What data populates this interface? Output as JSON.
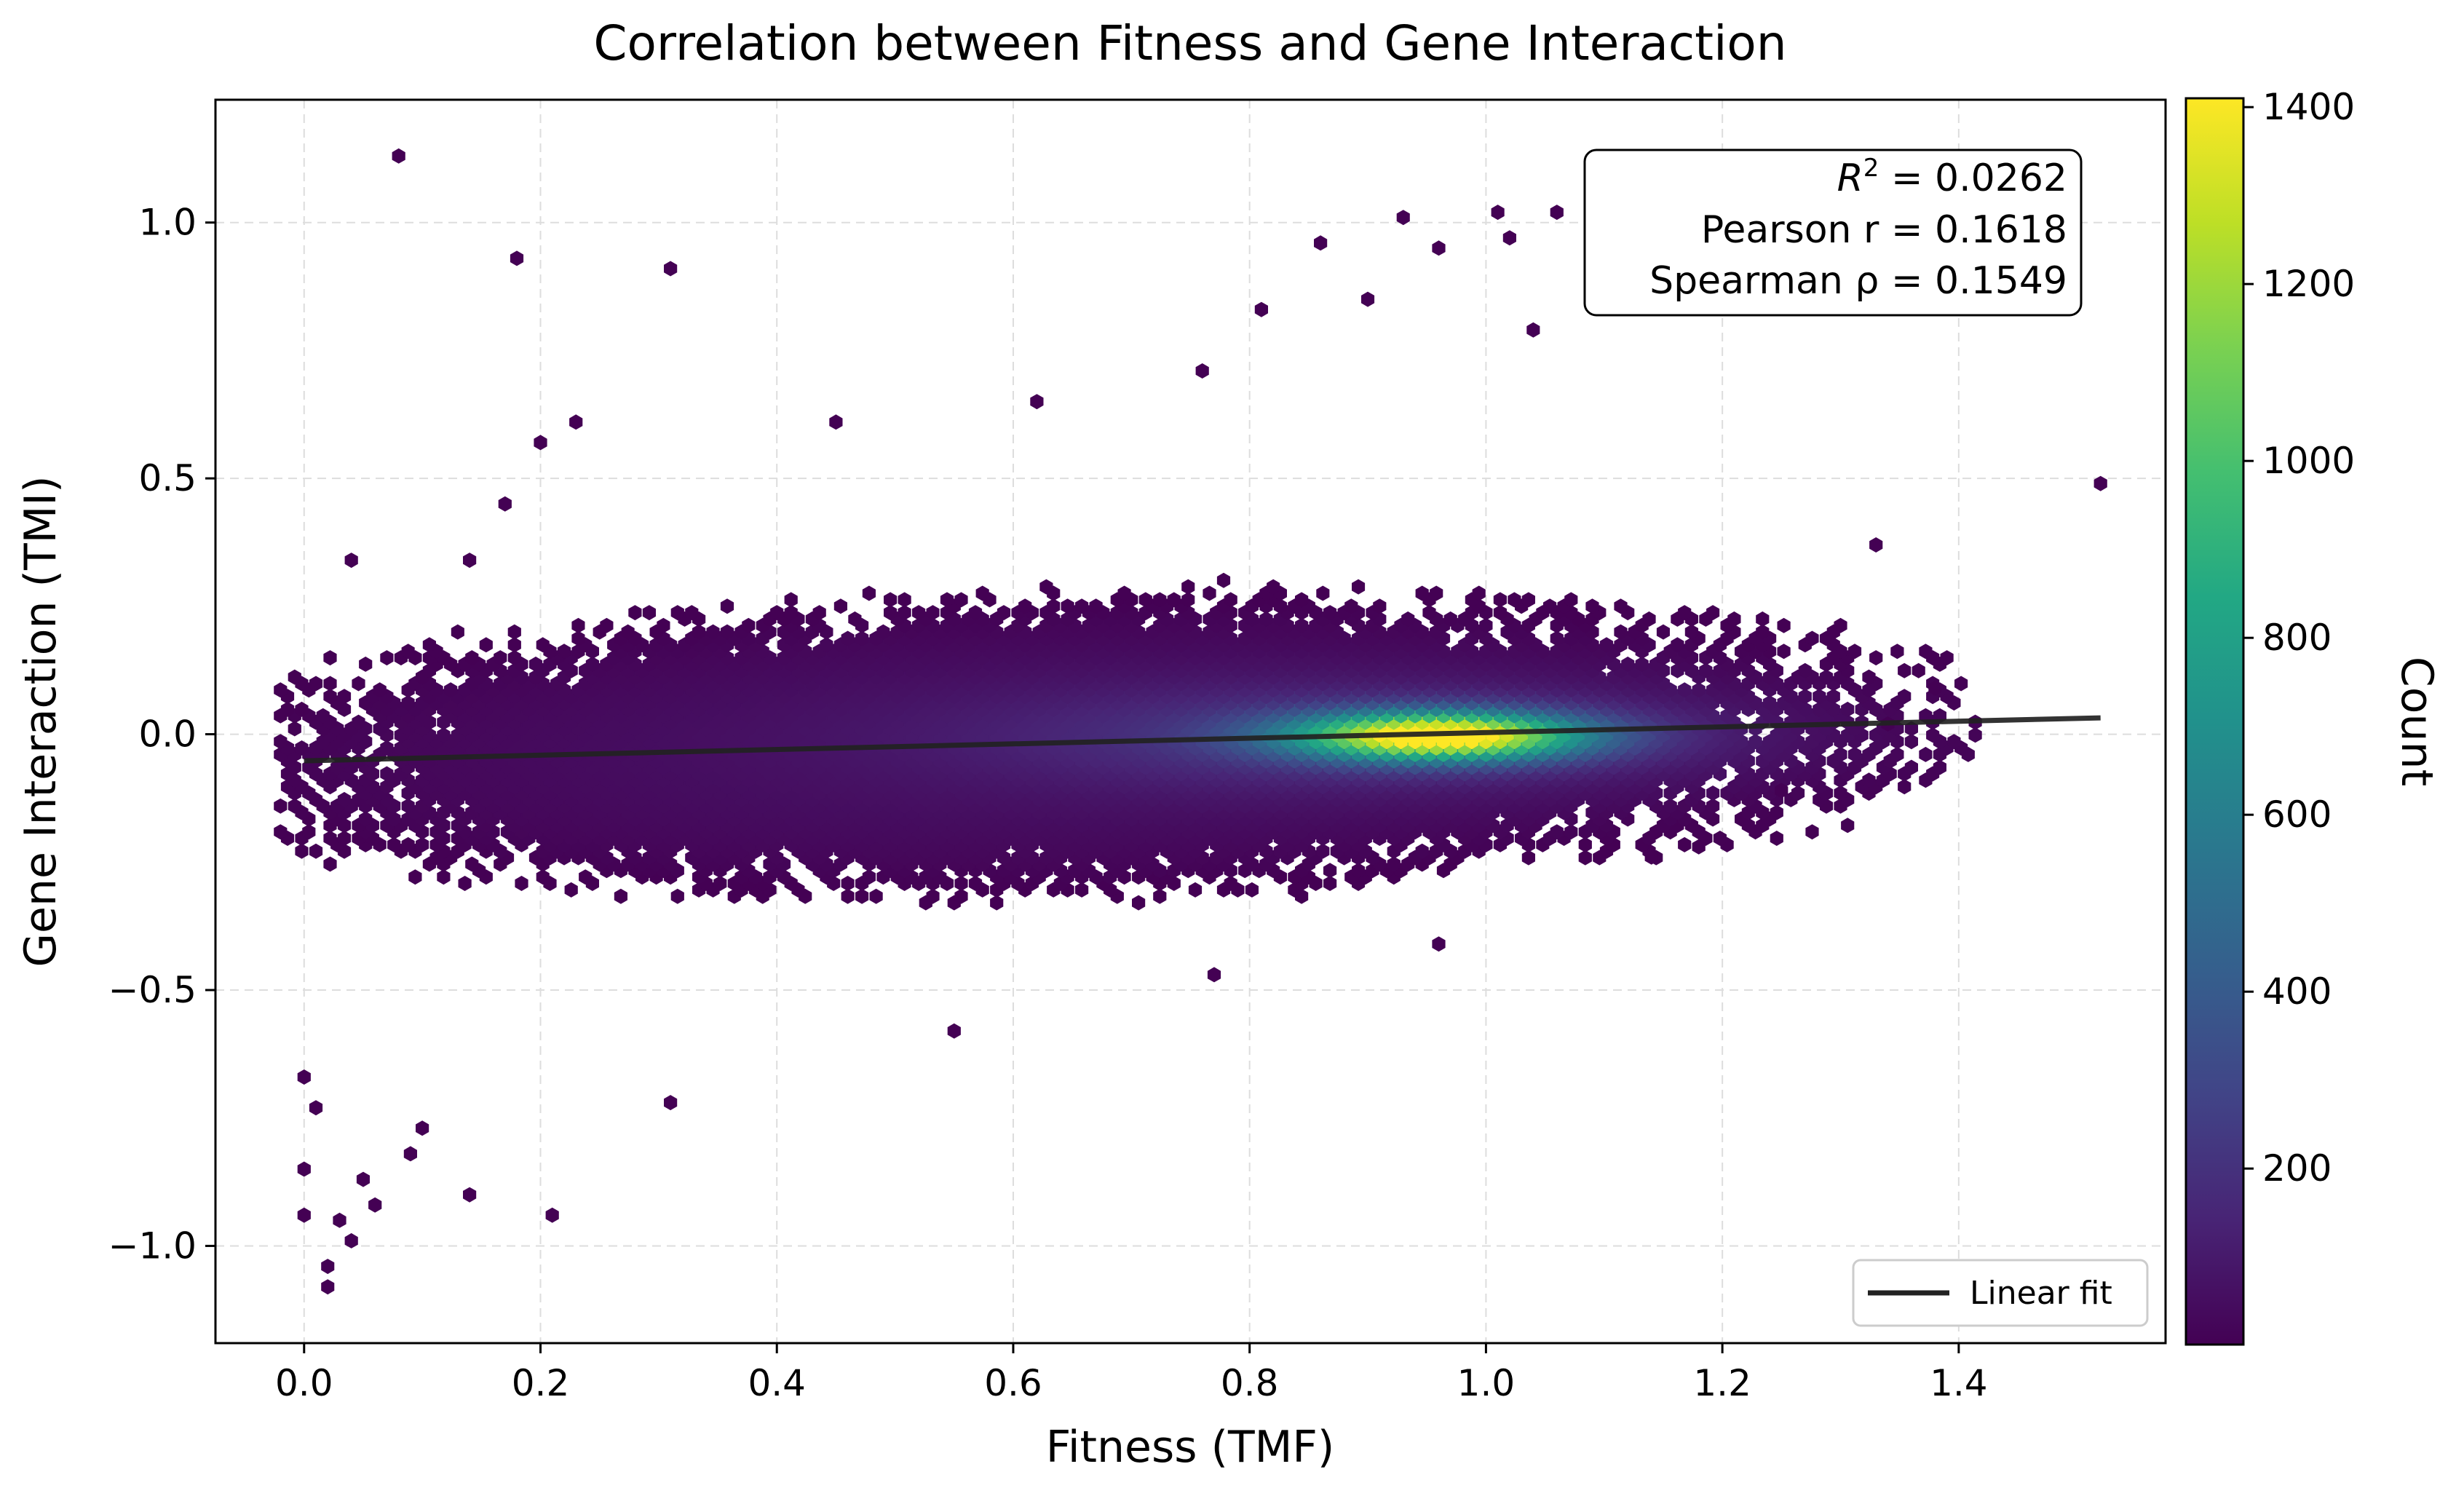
{
  "chart_data": {
    "type": "heatmap",
    "subtype": "hexbin",
    "title": "Correlation between Fitness and Gene Interaction",
    "xlabel": "Fitness (TMF)",
    "ylabel": "Gene Interaction (TMI)",
    "xlim": [
      -0.075,
      1.575
    ],
    "ylim": [
      -1.19,
      1.24
    ],
    "xticks": [
      0.0,
      0.2,
      0.4,
      0.6,
      0.8,
      1.0,
      1.2,
      1.4
    ],
    "xtick_labels": [
      "0.0",
      "0.2",
      "0.4",
      "0.6",
      "0.8",
      "1.0",
      "1.2",
      "1.4"
    ],
    "yticks": [
      -1.0,
      -0.5,
      0.0,
      0.5,
      1.0
    ],
    "ytick_labels": [
      "−1.0",
      "−0.5",
      "0.0",
      "0.5",
      "1.0"
    ],
    "grid": true,
    "colormap": "viridis",
    "colorbar": {
      "label": "Count",
      "range": [
        1,
        1410
      ],
      "ticks": [
        200,
        400,
        600,
        800,
        1000,
        1200,
        1400
      ],
      "tick_labels": [
        "200",
        "400",
        "600",
        "800",
        "1000",
        "1200",
        "1400"
      ]
    },
    "density_peak": {
      "x": 0.96,
      "y": 0.0,
      "count": 1410
    },
    "density_core": {
      "x_range": [
        0.0,
        1.3
      ],
      "y_range": [
        -0.35,
        0.3
      ]
    },
    "sparse_points": [
      {
        "x": 0.08,
        "y": 1.13
      },
      {
        "x": 0.18,
        "y": 0.93
      },
      {
        "x": 0.31,
        "y": 0.91
      },
      {
        "x": 0.93,
        "y": 1.01
      },
      {
        "x": 1.01,
        "y": 1.02
      },
      {
        "x": 1.06,
        "y": 1.02
      },
      {
        "x": 1.02,
        "y": 0.97
      },
      {
        "x": 0.86,
        "y": 0.96
      },
      {
        "x": 0.96,
        "y": 0.95
      },
      {
        "x": 1.04,
        "y": 0.79
      },
      {
        "x": 0.81,
        "y": 0.83
      },
      {
        "x": 0.9,
        "y": 0.85
      },
      {
        "x": 0.76,
        "y": 0.71
      },
      {
        "x": 0.62,
        "y": 0.65
      },
      {
        "x": 0.17,
        "y": 0.45
      },
      {
        "x": 0.14,
        "y": 0.34
      },
      {
        "x": 0.2,
        "y": 0.57
      },
      {
        "x": 0.23,
        "y": 0.61
      },
      {
        "x": 0.45,
        "y": 0.61
      },
      {
        "x": 0.04,
        "y": 0.34
      },
      {
        "x": 1.52,
        "y": 0.49
      },
      {
        "x": 1.33,
        "y": 0.37
      },
      {
        "x": 1.38,
        "y": 0.09
      },
      {
        "x": 1.34,
        "y": 0.02
      },
      {
        "x": 0.0,
        "y": -0.94
      },
      {
        "x": 0.0,
        "y": -0.85
      },
      {
        "x": 0.02,
        "y": -1.04
      },
      {
        "x": 0.02,
        "y": -1.08
      },
      {
        "x": 0.03,
        "y": -0.95
      },
      {
        "x": 0.04,
        "y": -0.99
      },
      {
        "x": 0.01,
        "y": -0.73
      },
      {
        "x": 0.0,
        "y": -0.67
      },
      {
        "x": 0.05,
        "y": -0.87
      },
      {
        "x": 0.1,
        "y": -0.77
      },
      {
        "x": 0.14,
        "y": -0.9
      },
      {
        "x": 0.21,
        "y": -0.94
      },
      {
        "x": 0.09,
        "y": -0.82
      },
      {
        "x": 0.06,
        "y": -0.92
      },
      {
        "x": 0.31,
        "y": -0.72
      },
      {
        "x": 0.96,
        "y": -0.41
      },
      {
        "x": 0.77,
        "y": -0.47
      },
      {
        "x": 0.55,
        "y": -0.58
      },
      {
        "x": 1.14,
        "y": -0.24
      },
      {
        "x": 1.18,
        "y": -0.22
      },
      {
        "x": 1.25,
        "y": -0.11
      }
    ],
    "fit_line": {
      "name": "Linear fit",
      "x": [
        0.0,
        1.52
      ],
      "y": [
        -0.052,
        0.032
      ],
      "color": "#222222"
    },
    "stats": {
      "r2_symbol": "R",
      "r2_sup": "2",
      "r2_value": " = 0.0262",
      "pearson": "Pearson r = 0.1618",
      "spearman": "Spearman ρ = 0.1549"
    },
    "legend": {
      "position": "lower-right",
      "entries": [
        "Linear fit"
      ]
    }
  }
}
